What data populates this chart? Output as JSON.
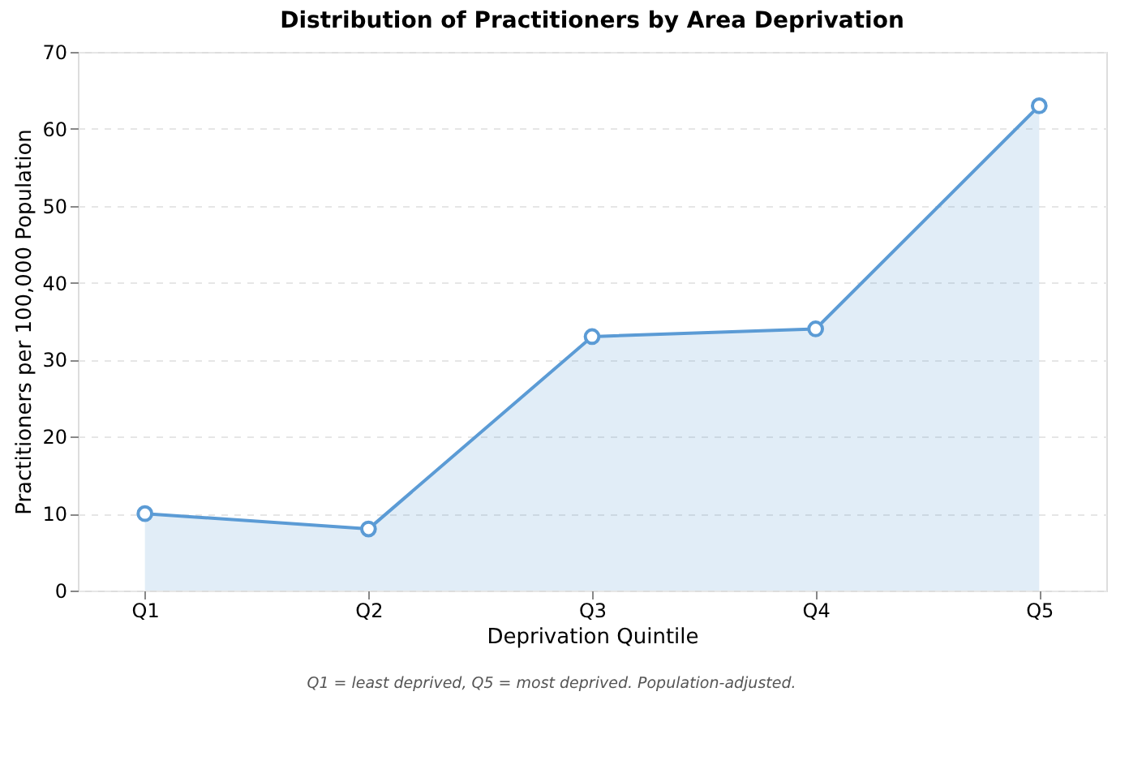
{
  "chart_data": {
    "type": "area",
    "title": "Distribution of Practitioners by Area Deprivation",
    "xlabel": "Deprivation Quintile",
    "ylabel": "Practitioners per 100,000 Population",
    "categories": [
      "Q1",
      "Q2",
      "Q3",
      "Q4",
      "Q5"
    ],
    "series": [
      {
        "color": "#5b9bd5",
        "values": [
          10,
          8,
          33,
          34,
          63
        ]
      }
    ],
    "ylim": [
      0,
      70
    ],
    "yticks": [
      0,
      10,
      20,
      30,
      40,
      50,
      60,
      70
    ],
    "grid": "y",
    "marker": "circle",
    "line_style": "solid",
    "annotations": [
      "Q1 = least deprived, Q5 = most deprived. Population-adjusted."
    ]
  }
}
